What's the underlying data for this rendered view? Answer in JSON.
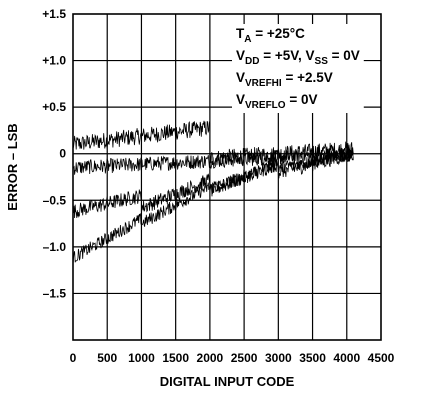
{
  "chart_data": {
    "type": "line",
    "xlabel": "DIGITAL INPUT CODE",
    "ylabel": "ERROR – LSB",
    "xlim": [
      0,
      4500
    ],
    "ylim": [
      -2.0,
      1.5
    ],
    "xticks": [
      0,
      500,
      1000,
      1500,
      2000,
      2500,
      3000,
      3500,
      4000,
      4500
    ],
    "xtick_labels": [
      "0",
      "500",
      "1000",
      "1500",
      "2000",
      "2500",
      "3000",
      "3500",
      "4000",
      "4500"
    ],
    "yticks": [
      1.5,
      1.0,
      0.5,
      0,
      -0.5,
      -1.0,
      -1.5
    ],
    "ytick_labels": [
      "+1.5",
      "+1.0",
      "+0.5",
      "0",
      "–0.5",
      "–1.0",
      "–1.5"
    ],
    "grid": true,
    "annotations": [
      {
        "main": "T",
        "sub": "A",
        "rest": " = +25°C"
      },
      {
        "main": "V",
        "sub": "DD",
        "rest": " = +5V, V",
        "sub2": "SS",
        "rest2": " = 0V"
      },
      {
        "main": "V",
        "sub": "VREFHI",
        "rest": " = +2.5V"
      },
      {
        "main": "V",
        "sub": "VREFLO",
        "rest": " = 0V"
      }
    ],
    "series": [
      {
        "x": [
          0,
          2000,
          2000,
          4095
        ],
        "values": [
          0.1,
          0.28,
          -0.05,
          0.05
        ],
        "noise": 0.09
      },
      {
        "x": [
          0,
          4095
        ],
        "values": [
          -0.15,
          0.0
        ],
        "noise": 0.08
      },
      {
        "x": [
          0,
          1000,
          1000,
          2000,
          2000,
          3000,
          3000,
          4095
        ],
        "values": [
          -0.62,
          -0.45,
          -0.58,
          -0.28,
          -0.4,
          -0.1,
          -0.2,
          0.0
        ],
        "noise": 0.08
      },
      {
        "x": [
          0,
          1000,
          1000,
          2000,
          2000,
          3000,
          3000,
          4095
        ],
        "values": [
          -1.12,
          -0.7,
          -0.75,
          -0.35,
          -0.38,
          -0.12,
          -0.15,
          0.0
        ],
        "noise": 0.07
      }
    ]
  }
}
